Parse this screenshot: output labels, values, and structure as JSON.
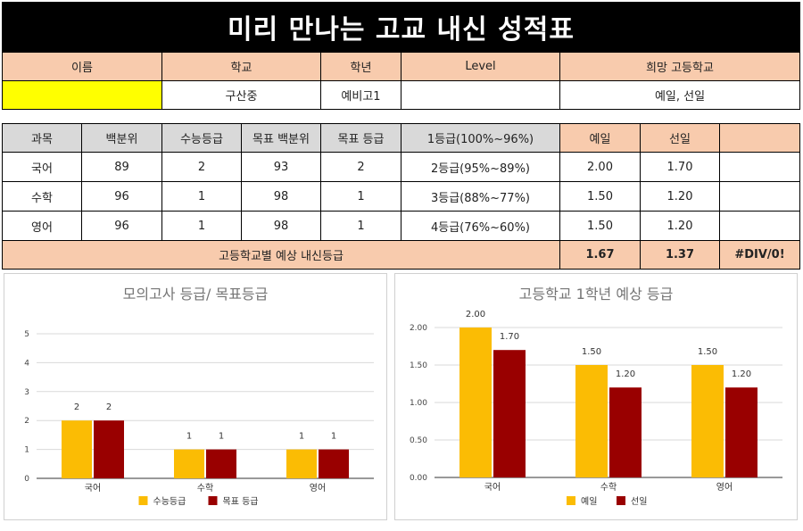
{
  "title": "미리 만나는 고교 내신 성적표",
  "info": {
    "headers": [
      "이름",
      "학교",
      "학년",
      "Level",
      "희망 고등학교"
    ],
    "values": [
      "",
      "구산중",
      "예비고1",
      "",
      "예일, 선일"
    ]
  },
  "grades": {
    "headers": [
      "과목",
      "백분위",
      "수능등급",
      "목표 백분위",
      "목표 등급",
      "1등급(100%~96%)",
      "예일",
      "선일",
      ""
    ],
    "rows": [
      [
        "국어",
        "89",
        "2",
        "93",
        "2",
        "2등급(95%~89%)",
        "2.00",
        "1.70",
        ""
      ],
      [
        "수학",
        "96",
        "1",
        "98",
        "1",
        "3등급(88%~77%)",
        "1.50",
        "1.20",
        ""
      ],
      [
        "영어",
        "96",
        "1",
        "98",
        "1",
        "4등급(76%~60%)",
        "1.50",
        "1.20",
        ""
      ]
    ],
    "footer_label": "고등학교별 예상 내신등급",
    "footer_values": [
      "1.67",
      "1.37",
      "#DIV/0!"
    ]
  },
  "colors": {
    "series1": "#fbbc04",
    "series2": "#990000",
    "header_peach": "#f8cbad",
    "header_gray": "#d9d9d9",
    "name_cell": "#ffff00"
  },
  "chart_data": [
    {
      "type": "bar",
      "title": "모의고사 등급/ 목표등급",
      "categories": [
        "국어",
        "수학",
        "영어"
      ],
      "series": [
        {
          "name": "수능등급",
          "values": [
            2,
            1,
            1
          ]
        },
        {
          "name": "목표 등급",
          "values": [
            2,
            1,
            1
          ]
        }
      ],
      "ylim": [
        0,
        5
      ],
      "yticks": [
        "0",
        "1",
        "2",
        "3",
        "4",
        "5"
      ],
      "grid": true,
      "legend": "bottom",
      "data_labels": [
        [
          "2",
          "1",
          "1"
        ],
        [
          "2",
          "1",
          "1"
        ]
      ]
    },
    {
      "type": "bar",
      "title": "고등학교 1학년 예상 등급",
      "categories": [
        "국어",
        "수학",
        "영어"
      ],
      "series": [
        {
          "name": "예일",
          "values": [
            2.0,
            1.5,
            1.5
          ]
        },
        {
          "name": "선일",
          "values": [
            1.7,
            1.2,
            1.2
          ]
        }
      ],
      "ylim": [
        0,
        2
      ],
      "yticks": [
        "0.00",
        "0.50",
        "1.00",
        "1.50",
        "2.00"
      ],
      "grid": true,
      "legend": "bottom",
      "data_labels": [
        [
          "2.00",
          "1.50",
          "1.50"
        ],
        [
          "1.70",
          "1.20",
          "1.20"
        ]
      ]
    }
  ]
}
